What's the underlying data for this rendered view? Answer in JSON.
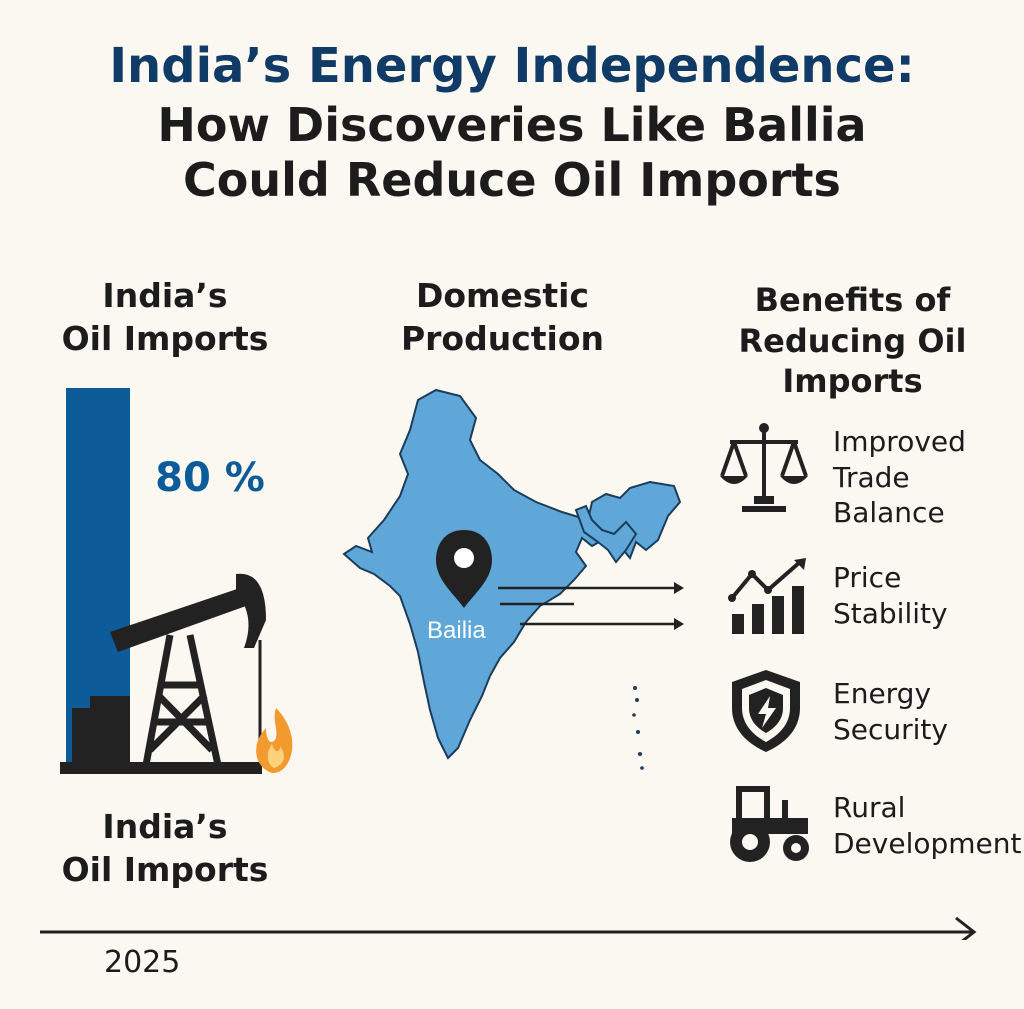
{
  "title": {
    "line1": "India’s Energy Independence:",
    "line2": "How Discoveries Like Ballia",
    "line3": "Could Reduce Oil Imports"
  },
  "imports": {
    "heading_line1": "India’s",
    "heading_line2": "Oil Imports",
    "share_label": "80 %",
    "share_value": 80,
    "footer_line1": "India’s",
    "footer_line2": "Oil Imports",
    "bar_color": "#0d5b98",
    "icons": [
      "oil-pump-icon",
      "flame-icon"
    ]
  },
  "domestic": {
    "heading_line1": "Domestic",
    "heading_line2": "Production",
    "map_label": "Bailia",
    "map_color": "#5ea7d8",
    "icons": [
      "india-map",
      "location-pin-icon",
      "arrow-right-icon"
    ]
  },
  "benefits": {
    "heading_line1": "Benefits of",
    "heading_line2": "Reducing Oil",
    "heading_line3": "Imports",
    "items": [
      {
        "icon": "scales-icon",
        "line1": "Improved",
        "line2": "Trade",
        "line3": "Balance"
      },
      {
        "icon": "growth-chart-icon",
        "line1": "Price",
        "line2": "Stability"
      },
      {
        "icon": "shield-bolt-icon",
        "line1": "Energy",
        "line2": "Security"
      },
      {
        "icon": "tractor-icon",
        "line1": "Rural",
        "line2": "Development"
      }
    ]
  },
  "timeline": {
    "year": "2025"
  }
}
